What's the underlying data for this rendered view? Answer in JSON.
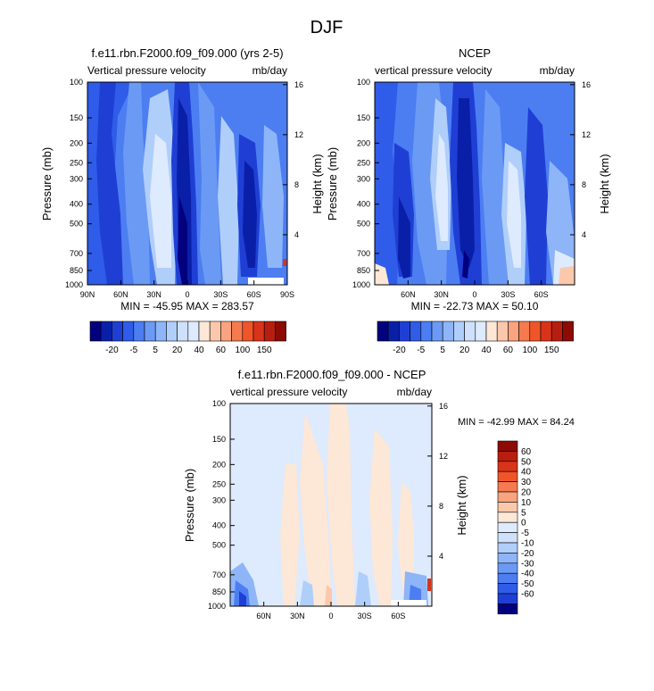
{
  "figure": {
    "title": "DJF"
  },
  "colors": {
    "blues": [
      "#03007f",
      "#0a1fa8",
      "#1f3fd4",
      "#2f5ce8",
      "#4c7ef2",
      "#6b9af5",
      "#8db5f8",
      "#b0cefa",
      "#cfe0fc",
      "#deeafd"
    ],
    "reds": [
      "#fde7d6",
      "#fbc8ac",
      "#f9a37f",
      "#f67a4f",
      "#f0552a",
      "#d9331a",
      "#b81e10",
      "#8c0b05"
    ]
  },
  "chart_data": [
    {
      "type": "heatmap",
      "panel": "left",
      "title": "f.e11.rbn.F2000.f09_f09.000 (yrs 2-5)",
      "subtitle_left": "Vertical pressure velocity",
      "subtitle_right": "mb/day",
      "xlabel": "",
      "ylabel": "Pressure (mb)",
      "ylabel_right": "Height (km)",
      "xticks": [
        "90N",
        "60N",
        "30N",
        "0",
        "30S",
        "60S",
        "90S"
      ],
      "yticks": [
        "100",
        "150",
        "200",
        "250",
        "300",
        "400",
        "500",
        "700",
        "850",
        "1000"
      ],
      "yticks_right": [
        "16",
        "12",
        "8",
        "4"
      ],
      "xlim_lat": [
        90,
        -90
      ],
      "ylim": [
        1000,
        100
      ],
      "stats": "MIN = -45.95  MAX = 283.57",
      "colorbar_labels": [
        "-20",
        "-5",
        "5",
        "20",
        "40",
        "60",
        "100",
        "150"
      ],
      "features": [
        {
          "lat": 75,
          "value": -30
        },
        {
          "lat": 55,
          "value": -35
        },
        {
          "lat": 40,
          "value": -10
        },
        {
          "lat": 22,
          "value": 5
        },
        {
          "lat": 8,
          "value": -40
        },
        {
          "lat": -5,
          "value": -45
        },
        {
          "lat": -25,
          "value": -15
        },
        {
          "lat": -45,
          "value": -30
        },
        {
          "lat": -62,
          "value": -5
        },
        {
          "lat": -75,
          "value": -40
        }
      ]
    },
    {
      "type": "heatmap",
      "panel": "right",
      "title": "NCEP",
      "subtitle_left": "vertical pressure velocity",
      "subtitle_right": "mb/day",
      "xlabel": "",
      "ylabel": "Pressure (mb)",
      "ylabel_right": "Height (km)",
      "xticks": [
        "60N",
        "30N",
        "0",
        "30S",
        "60S"
      ],
      "yticks": [
        "100",
        "150",
        "200",
        "250",
        "300",
        "400",
        "500",
        "700",
        "850",
        "1000"
      ],
      "yticks_right": [
        "16",
        "12",
        "8",
        "4"
      ],
      "xlim_lat": [
        90,
        -90
      ],
      "ylim": [
        1000,
        100
      ],
      "stats": "MIN = -22.73  MAX =  50.10",
      "colorbar_labels": [
        "-20",
        "-5",
        "5",
        "20",
        "40",
        "60",
        "100",
        "150"
      ],
      "features": [
        {
          "lat": 75,
          "value": -15
        },
        {
          "lat": 58,
          "value": -20
        },
        {
          "lat": 38,
          "value": -10
        },
        {
          "lat": 25,
          "value": 5
        },
        {
          "lat": 10,
          "value": -18
        },
        {
          "lat": -5,
          "value": -20
        },
        {
          "lat": -25,
          "value": -12
        },
        {
          "lat": -45,
          "value": -18
        },
        {
          "lat": -62,
          "value": -5
        },
        {
          "lat": -78,
          "value": -15
        }
      ]
    },
    {
      "type": "heatmap",
      "panel": "difference",
      "title": "f.e11.rbn.F2000.f09_f09.000 - NCEP",
      "subtitle_left": "vertical pressure velocity",
      "subtitle_right": "mb/day",
      "xlabel": "",
      "ylabel": "Pressure (mb)",
      "ylabel_right": "Height (km)",
      "xticks": [
        "60N",
        "30N",
        "0",
        "30S",
        "60S"
      ],
      "yticks": [
        "100",
        "150",
        "200",
        "250",
        "300",
        "400",
        "500",
        "700",
        "850",
        "1000"
      ],
      "yticks_right": [
        "16",
        "12",
        "8",
        "4"
      ],
      "xlim_lat": [
        90,
        -90
      ],
      "ylim": [
        1000,
        100
      ],
      "stats": "MIN = -42.99  MAX =  84.24",
      "colorbar_labels": [
        "60",
        "50",
        "40",
        "30",
        "20",
        "10",
        "5",
        "0",
        "-5",
        "-10",
        "-20",
        "-30",
        "-40",
        "-50",
        "-60"
      ],
      "features": [
        {
          "lat": 40,
          "value": 3
        },
        {
          "lat": 0,
          "value": 5
        },
        {
          "lat": -35,
          "value": 3
        },
        {
          "lat": -60,
          "value": 2
        }
      ]
    }
  ]
}
